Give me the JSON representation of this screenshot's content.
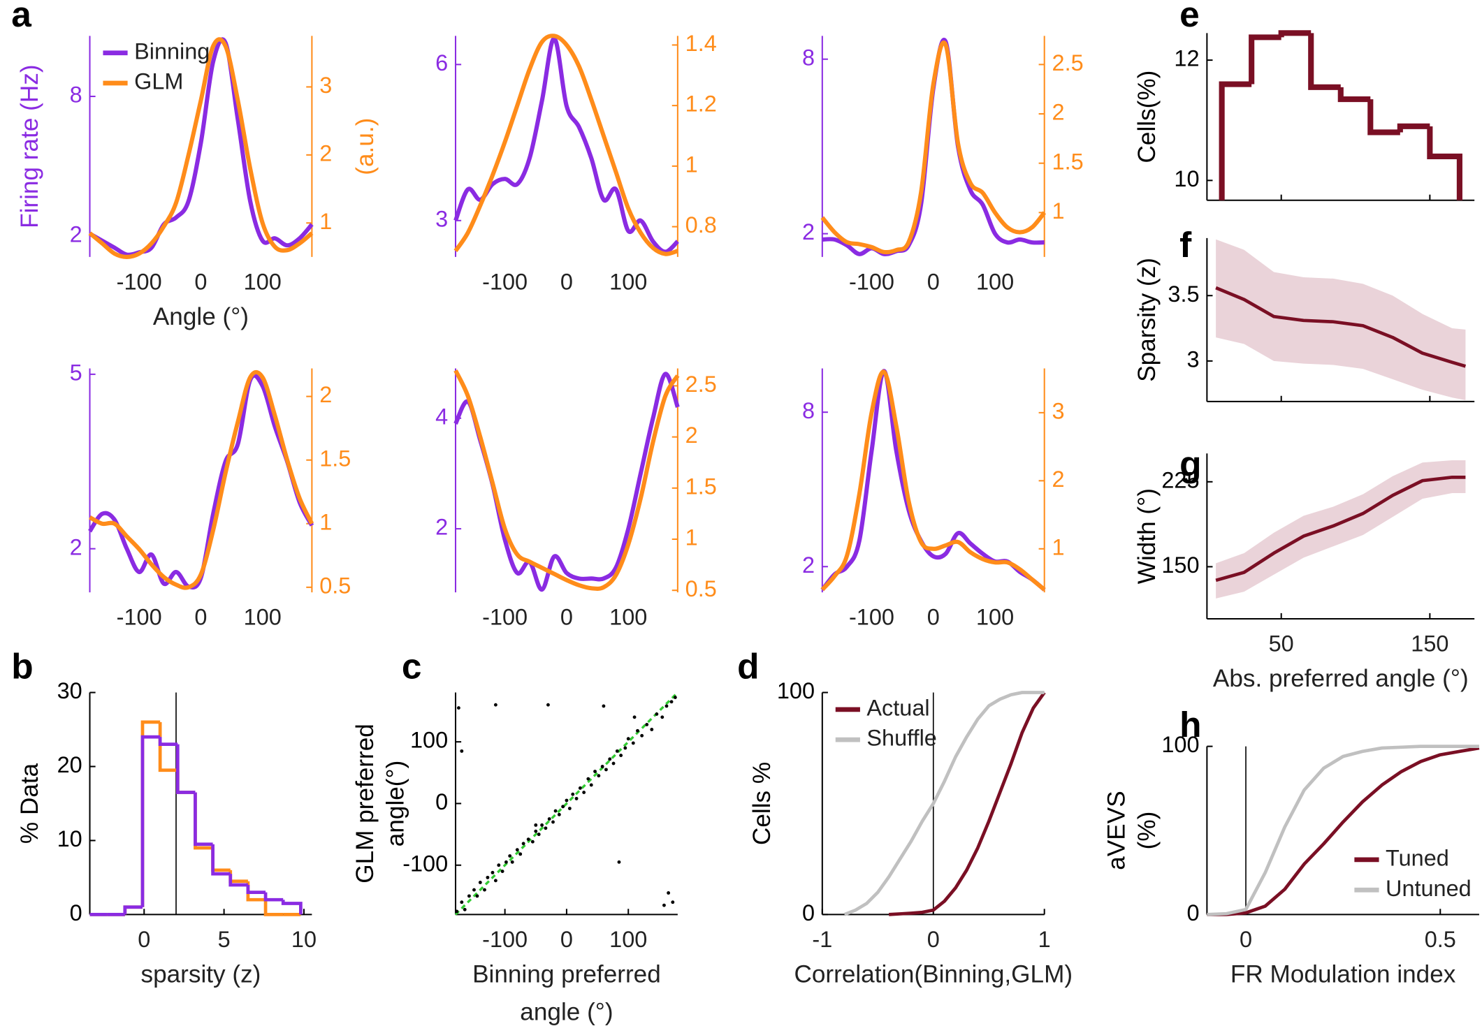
{
  "chart_data": [
    {
      "type": "line",
      "panel": "a",
      "smooth": true,
      "x": [
        -180,
        -160,
        -140,
        -120,
        -100,
        -80,
        -60,
        -40,
        -20,
        0,
        20,
        40,
        60,
        80,
        100,
        120,
        140,
        160,
        180
      ],
      "xlim": [
        -180,
        180
      ],
      "xticks": [
        -100,
        0,
        100
      ],
      "ylim": [
        1.1,
        10.6
      ],
      "yticks": [
        2,
        8
      ],
      "y2lim": [
        0.5,
        3.75
      ],
      "y2ticks": [
        1,
        2,
        3
      ],
      "ycolor": "#8a2be2",
      "y2color": "#ff8c1a",
      "xlabel": "Angle (°)",
      "ylabel": "Firing rate (Hz)",
      "y2label": "(a.u.)",
      "legend": "upper left",
      "series": [
        {
          "name": "Binning",
          "color": "#8a2be2",
          "values": [
            2.1,
            1.8,
            1.5,
            1.2,
            1.3,
            1.5,
            2.5,
            2.8,
            3.5,
            6,
            9.5,
            10.3,
            7,
            3.5,
            1.8,
            1.9,
            1.6,
            1.9,
            2.5
          ]
        },
        {
          "name": "GLM",
          "color": "#ff8c1a",
          "axis": "y2",
          "values": [
            0.85,
            0.7,
            0.55,
            0.5,
            0.55,
            0.7,
            0.95,
            1.3,
            2,
            2.8,
            3.6,
            3.6,
            2.8,
            1.8,
            1,
            0.65,
            0.6,
            0.7,
            0.85
          ]
        }
      ]
    },
    {
      "type": "line",
      "smooth": true,
      "x": [
        -180,
        -160,
        -140,
        -120,
        -100,
        -80,
        -60,
        -40,
        -20,
        0,
        20,
        40,
        60,
        80,
        100,
        120,
        140,
        160,
        180
      ],
      "xlim": [
        -180,
        180
      ],
      "xticks": [
        -100,
        0,
        100
      ],
      "ylim": [
        2.3,
        6.55
      ],
      "yticks": [
        3,
        6
      ],
      "y2lim": [
        0.7,
        1.43
      ],
      "y2ticks": [
        0.8,
        1,
        1.2,
        1.4
      ],
      "ycolor": "#8a2be2",
      "y2color": "#ff8c1a",
      "series": [
        {
          "color": "#8a2be2",
          "values": [
            3,
            3.6,
            3.4,
            3.7,
            3.8,
            3.7,
            4.2,
            5.3,
            6.5,
            5.2,
            4.8,
            4.2,
            3.4,
            3.6,
            2.8,
            3,
            2.6,
            2.4,
            2.6
          ]
        },
        {
          "color": "#ff8c1a",
          "axis": "y2",
          "values": [
            0.72,
            0.78,
            0.87,
            0.97,
            1.08,
            1.2,
            1.32,
            1.41,
            1.43,
            1.4,
            1.33,
            1.22,
            1.1,
            0.98,
            0.86,
            0.78,
            0.73,
            0.71,
            0.72
          ]
        }
      ]
    },
    {
      "type": "line",
      "smooth": true,
      "x": [
        -180,
        -160,
        -140,
        -120,
        -100,
        -80,
        -60,
        -40,
        -20,
        0,
        20,
        40,
        60,
        80,
        100,
        120,
        140,
        160,
        180
      ],
      "xlim": [
        -180,
        180
      ],
      "xticks": [
        -100,
        0,
        100
      ],
      "ylim": [
        1.2,
        8.8
      ],
      "yticks": [
        2,
        8
      ],
      "y2lim": [
        0.55,
        2.79
      ],
      "y2ticks": [
        1,
        1.5,
        2,
        2.5
      ],
      "ycolor": "#8a2be2",
      "y2color": "#ff8c1a",
      "series": [
        {
          "color": "#8a2be2",
          "values": [
            1.8,
            1.8,
            1.6,
            1.3,
            1.5,
            1.3,
            1.4,
            1.6,
            3,
            7,
            8.6,
            5,
            3.5,
            3,
            2,
            1.7,
            1.8,
            1.7,
            1.7
          ]
        },
        {
          "color": "#ff8c1a",
          "axis": "y2",
          "values": [
            0.95,
            0.8,
            0.7,
            0.68,
            0.65,
            0.6,
            0.62,
            0.7,
            1.2,
            2.3,
            2.7,
            1.7,
            1.3,
            1.2,
            1,
            0.85,
            0.8,
            0.85,
            1
          ]
        }
      ]
    },
    {
      "type": "line",
      "smooth": true,
      "x": [
        -180,
        -160,
        -140,
        -120,
        -100,
        -80,
        -60,
        -40,
        -20,
        0,
        20,
        40,
        60,
        80,
        100,
        120,
        140,
        160,
        180
      ],
      "xlim": [
        -180,
        180
      ],
      "xticks": [
        -100,
        0,
        100
      ],
      "ylim": [
        1.25,
        5.1
      ],
      "yticks": [
        2,
        5
      ],
      "y2lim": [
        0.46,
        2.22
      ],
      "y2ticks": [
        0.5,
        1,
        1.5,
        2
      ],
      "ycolor": "#8a2be2",
      "y2color": "#ff8c1a",
      "series": [
        {
          "color": "#8a2be2",
          "values": [
            2.3,
            2.6,
            2.5,
            2,
            1.6,
            1.9,
            1.4,
            1.6,
            1.35,
            1.5,
            2.6,
            3.5,
            3.8,
            4.9,
            4.8,
            4.1,
            3.5,
            2.8,
            2.4
          ]
        },
        {
          "color": "#ff8c1a",
          "axis": "y2",
          "values": [
            1.05,
            1,
            1,
            0.9,
            0.8,
            0.68,
            0.58,
            0.52,
            0.5,
            0.6,
            0.95,
            1.4,
            1.8,
            2.15,
            2.15,
            1.85,
            1.5,
            1.2,
            1
          ]
        }
      ]
    },
    {
      "type": "line",
      "smooth": true,
      "x": [
        -180,
        -160,
        -140,
        -120,
        -100,
        -80,
        -60,
        -40,
        -20,
        0,
        20,
        40,
        60,
        80,
        100,
        120,
        140,
        160,
        180
      ],
      "xlim": [
        -180,
        180
      ],
      "xticks": [
        -100,
        0,
        100
      ],
      "ylim": [
        0.85,
        4.9
      ],
      "yticks": [
        2,
        4
      ],
      "y2lim": [
        0.48,
        2.67
      ],
      "y2ticks": [
        0.5,
        1,
        1.5,
        2,
        2.5
      ],
      "ycolor": "#8a2be2",
      "y2color": "#ff8c1a",
      "series": [
        {
          "color": "#8a2be2",
          "values": [
            3.9,
            4.3,
            3.6,
            2.8,
            1.8,
            1.2,
            1.4,
            0.9,
            1.5,
            1.2,
            1.1,
            1.1,
            1.1,
            1.3,
            2,
            3,
            4,
            4.8,
            4.2
          ]
        },
        {
          "color": "#ff8c1a",
          "axis": "y2",
          "values": [
            2.65,
            2.4,
            2,
            1.55,
            1.1,
            0.85,
            0.78,
            0.72,
            0.66,
            0.6,
            0.55,
            0.52,
            0.53,
            0.65,
            0.95,
            1.4,
            1.95,
            2.4,
            2.6
          ]
        }
      ]
    },
    {
      "type": "line",
      "smooth": true,
      "x": [
        -180,
        -160,
        -140,
        -120,
        -100,
        -80,
        -60,
        -40,
        -20,
        0,
        20,
        40,
        60,
        80,
        100,
        120,
        140,
        160,
        180
      ],
      "xlim": [
        -180,
        180
      ],
      "xticks": [
        -100,
        0,
        100
      ],
      "ylim": [
        1,
        9.7
      ],
      "yticks": [
        2,
        8
      ],
      "y2lim": [
        0.36,
        3.65
      ],
      "y2ticks": [
        1,
        2,
        3
      ],
      "ycolor": "#8a2be2",
      "y2color": "#ff8c1a",
      "series": [
        {
          "color": "#8a2be2",
          "values": [
            1.1,
            1.7,
            2,
            3,
            6.5,
            9.6,
            6.5,
            4.2,
            3,
            2.4,
            2.5,
            3.3,
            2.9,
            2.5,
            2.2,
            2.2,
            1.8,
            1.5,
            1.1
          ]
        },
        {
          "color": "#ff8c1a",
          "axis": "y2",
          "values": [
            0.4,
            0.6,
            0.9,
            1.8,
            3,
            3.6,
            2.8,
            1.7,
            1.1,
            1,
            1.05,
            1.1,
            0.95,
            0.85,
            0.8,
            0.8,
            0.7,
            0.55,
            0.4
          ]
        }
      ]
    },
    {
      "type": "histogram",
      "panel": "b",
      "bins": [
        -3.4,
        -2.3,
        -1.2,
        -0.1,
        1,
        2.1,
        3.2,
        4.3,
        5.4,
        6.5,
        7.6,
        8.7,
        9.8
      ],
      "xlim": [
        -3.4,
        10.5
      ],
      "xticks": [
        0,
        5,
        10
      ],
      "ylim": [
        0,
        30
      ],
      "yticks": [
        0,
        10,
        20,
        30
      ],
      "xlabel": "sparsity (z)",
      "ylabel": "% Data",
      "reference_x": 2,
      "line_width": 3.5,
      "series": [
        {
          "color": "#ff8c1a",
          "values": [
            0,
            0,
            1,
            26,
            19.5,
            16.5,
            9,
            6,
            4.5,
            2,
            0,
            0
          ]
        },
        {
          "color": "#8a2be2",
          "values": [
            0,
            0,
            1,
            24,
            23,
            16.5,
            9.5,
            5.5,
            4,
            3,
            2,
            1.5
          ]
        }
      ]
    },
    {
      "type": "scatter",
      "panel": "c",
      "color": "#000000",
      "identity_line": true,
      "identity_line_color": "#33cc33",
      "xlim": [
        -180,
        180
      ],
      "ylim": [
        -180,
        180
      ],
      "xticks": [
        -100,
        0,
        100
      ],
      "yticks": [
        -100,
        0,
        100
      ],
      "xlabel": [
        "Binning preferred",
        "angle (°)"
      ],
      "ylabel": [
        "GLM preferred",
        "angle(°)"
      ],
      "x": [
        -178,
        -170,
        -165,
        -158,
        -150,
        -145,
        -140,
        -133,
        -128,
        -120,
        -115,
        -110,
        -104,
        -98,
        -92,
        -88,
        -80,
        -75,
        -70,
        -62,
        -55,
        -50,
        -45,
        -40,
        -34,
        -28,
        -22,
        -18,
        -12,
        -6,
        0,
        5,
        10,
        16,
        22,
        28,
        35,
        40,
        46,
        52,
        58,
        64,
        70,
        76,
        82,
        88,
        95,
        100,
        108,
        115,
        122,
        130,
        138,
        146,
        155,
        162,
        170,
        176,
        -175,
        -115,
        -170,
        -30,
        60,
        85,
        165,
        172,
        158,
        -50,
        110
      ],
      "y": [
        -175,
        -160,
        -172,
        -150,
        -140,
        -150,
        -128,
        -140,
        -120,
        -112,
        -125,
        -100,
        -110,
        -95,
        -85,
        -95,
        -75,
        -82,
        -65,
        -58,
        -62,
        -45,
        -50,
        -35,
        -40,
        -25,
        -30,
        -12,
        -18,
        -5,
        5,
        -8,
        15,
        8,
        25,
        18,
        40,
        30,
        52,
        45,
        60,
        55,
        72,
        65,
        85,
        78,
        90,
        105,
        98,
        118,
        110,
        128,
        120,
        145,
        140,
        158,
        165,
        172,
        155,
        160,
        85,
        160,
        158,
        -95,
        -145,
        -160,
        -165,
        -35,
        140
      ]
    },
    {
      "type": "line",
      "panel": "d",
      "x": [
        -1,
        -0.9,
        -0.8,
        -0.7,
        -0.6,
        -0.5,
        -0.4,
        -0.3,
        -0.2,
        -0.1,
        0,
        0.1,
        0.2,
        0.3,
        0.4,
        0.5,
        0.6,
        0.7,
        0.8,
        0.9,
        1
      ],
      "xlim": [
        -1,
        1
      ],
      "xticks": [
        -1,
        0,
        1
      ],
      "ylim": [
        0,
        100
      ],
      "yticks": [
        0,
        100
      ],
      "xlabel": "Correlation(Binning,GLM)",
      "ylabel": "Cells %",
      "reference_x": 0,
      "legend": "upper left",
      "series": [
        {
          "name": "Actual",
          "color": "#7a0f24",
          "values": [
            null,
            null,
            null,
            null,
            null,
            null,
            0,
            0.3,
            0.6,
            1,
            2,
            6,
            12,
            20,
            30,
            42,
            55,
            68,
            82,
            93,
            100
          ]
        },
        {
          "name": "Shuffle",
          "color": "#c0c0c0",
          "values": [
            null,
            null,
            0,
            2,
            5,
            10,
            17,
            25,
            33,
            42,
            50,
            60,
            71,
            80,
            88,
            94,
            97,
            99,
            100,
            100,
            100
          ]
        }
      ]
    },
    {
      "type": "histogram",
      "panel": "e",
      "bins": [
        10,
        30,
        50,
        70,
        90,
        110,
        130,
        150,
        170
      ],
      "xlim": [
        0,
        180
      ],
      "xticks": [
        50,
        150
      ],
      "show_xtick_labels": false,
      "ylim": [
        9.67,
        12.45
      ],
      "yticks": [
        10,
        12
      ],
      "ylabel": "Cells(%)",
      "line_width": 6,
      "series": [
        {
          "color": "#7a0f24",
          "values": [
            11.6,
            12.38,
            12.45,
            11.55,
            11.35,
            10.8,
            10.9,
            10.4
          ]
        }
      ]
    },
    {
      "type": "line",
      "panel": "f",
      "x": [
        6,
        25,
        45,
        65,
        85,
        105,
        125,
        145,
        165,
        174
      ],
      "xlim": [
        0,
        180
      ],
      "xticks": [
        50,
        150
      ],
      "show_xtick_labels": false,
      "ylim": [
        2.69,
        3.94
      ],
      "yticks": [
        3,
        3.5
      ],
      "ylabel": "Sparsity (z)",
      "band_color": "#ead3d9",
      "series": [
        {
          "color": "#7a0f24",
          "values": [
            3.56,
            3.47,
            3.34,
            3.31,
            3.3,
            3.27,
            3.18,
            3.06,
            2.99,
            2.96
          ],
          "lower": [
            3.18,
            3.13,
            3,
            2.98,
            2.97,
            2.94,
            2.86,
            2.78,
            2.72,
            2.7
          ],
          "upper": [
            3.93,
            3.85,
            3.68,
            3.64,
            3.63,
            3.59,
            3.5,
            3.36,
            3.25,
            3.24
          ]
        }
      ]
    },
    {
      "type": "line",
      "panel": "g",
      "x": [
        6,
        25,
        45,
        65,
        85,
        105,
        125,
        145,
        165,
        174
      ],
      "xlim": [
        0,
        180
      ],
      "xticks": [
        50,
        150
      ],
      "ylim": [
        104,
        250
      ],
      "yticks": [
        150,
        225
      ],
      "xlabel": "Abs. preferred angle (°)",
      "ylabel": "Width (°)",
      "band_color": "#ead3d9",
      "series": [
        {
          "color": "#7a0f24",
          "values": [
            138,
            145,
            162,
            177,
            186,
            197,
            213,
            226,
            229,
            229
          ],
          "lower": [
            122,
            128,
            143,
            158,
            168,
            178,
            194,
            210,
            215,
            215
          ],
          "upper": [
            153,
            162,
            180,
            195,
            203,
            214,
            230,
            242,
            244,
            244
          ]
        }
      ]
    },
    {
      "type": "line",
      "panel": "h",
      "x": [
        -0.1,
        -0.05,
        0,
        0.05,
        0.1,
        0.15,
        0.2,
        0.25,
        0.3,
        0.35,
        0.4,
        0.45,
        0.5,
        0.55,
        0.6
      ],
      "xlim": [
        -0.1,
        0.6
      ],
      "xticks": [
        0,
        0.5
      ],
      "ylim": [
        0,
        100
      ],
      "yticks": [
        0,
        100
      ],
      "xlabel": "FR Modulation index",
      "ylabel": [
        "aVEVS",
        "(%)"
      ],
      "reference_x": 0,
      "legend": "lower right",
      "series": [
        {
          "name": "Tuned",
          "color": "#7a0f24",
          "values": [
            0,
            0,
            1,
            5,
            15,
            30,
            42,
            55,
            67,
            77,
            85,
            91,
            95,
            97,
            99
          ]
        },
        {
          "name": "Untuned",
          "color": "#c0c0c0",
          "values": [
            0,
            0.5,
            3,
            25,
            52,
            74,
            87,
            94,
            97,
            99,
            99.5,
            100,
            100,
            100,
            100
          ]
        }
      ]
    }
  ]
}
